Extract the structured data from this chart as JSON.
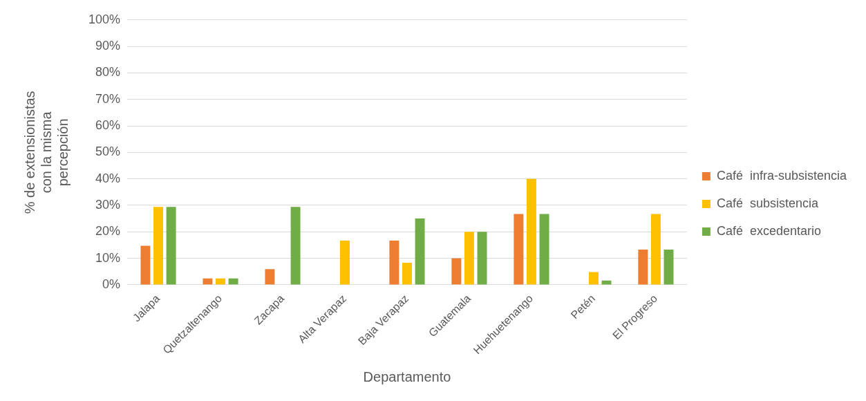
{
  "chart_data": {
    "type": "bar",
    "xlabel": "Departamento",
    "ylabel": "% de extensionistas con la misma percepción",
    "categories": [
      "Jalapa",
      "Quetzaltenango",
      "Zacapa",
      "Alta Verapaz",
      "Baja Verapaz",
      "Guatemala",
      "Huehuetenango",
      "Petén",
      "El Progreso"
    ],
    "series": [
      {
        "name": "Café  infra-subsistencia",
        "color": "#ed7d31",
        "values": [
          14.7,
          2.4,
          5.9,
          0,
          16.7,
          10,
          26.7,
          0,
          13.3
        ]
      },
      {
        "name": "Café  subsistencia",
        "color": "#ffc000",
        "values": [
          29.4,
          2.4,
          0,
          16.7,
          8.3,
          20,
          40,
          4.8,
          26.7
        ]
      },
      {
        "name": "Café  excedentario",
        "color": "#70ad47",
        "values": [
          29.4,
          2.4,
          29.4,
          0,
          25,
          20,
          26.7,
          1.6,
          13.3
        ]
      }
    ],
    "ylim": [
      0,
      100
    ],
    "yticks": [
      {
        "value": 0,
        "label": "0%"
      },
      {
        "value": 10,
        "label": "10%"
      },
      {
        "value": 20,
        "label": "20%"
      },
      {
        "value": 30,
        "label": "30%"
      },
      {
        "value": 40,
        "label": "40%"
      },
      {
        "value": 50,
        "label": "50%"
      },
      {
        "value": 60,
        "label": "60%"
      },
      {
        "value": 70,
        "label": "70%"
      },
      {
        "value": 80,
        "label": "80%"
      },
      {
        "value": 90,
        "label": "90%"
      },
      {
        "value": 100,
        "label": "100%"
      }
    ],
    "grid": "y",
    "legend": "right"
  }
}
